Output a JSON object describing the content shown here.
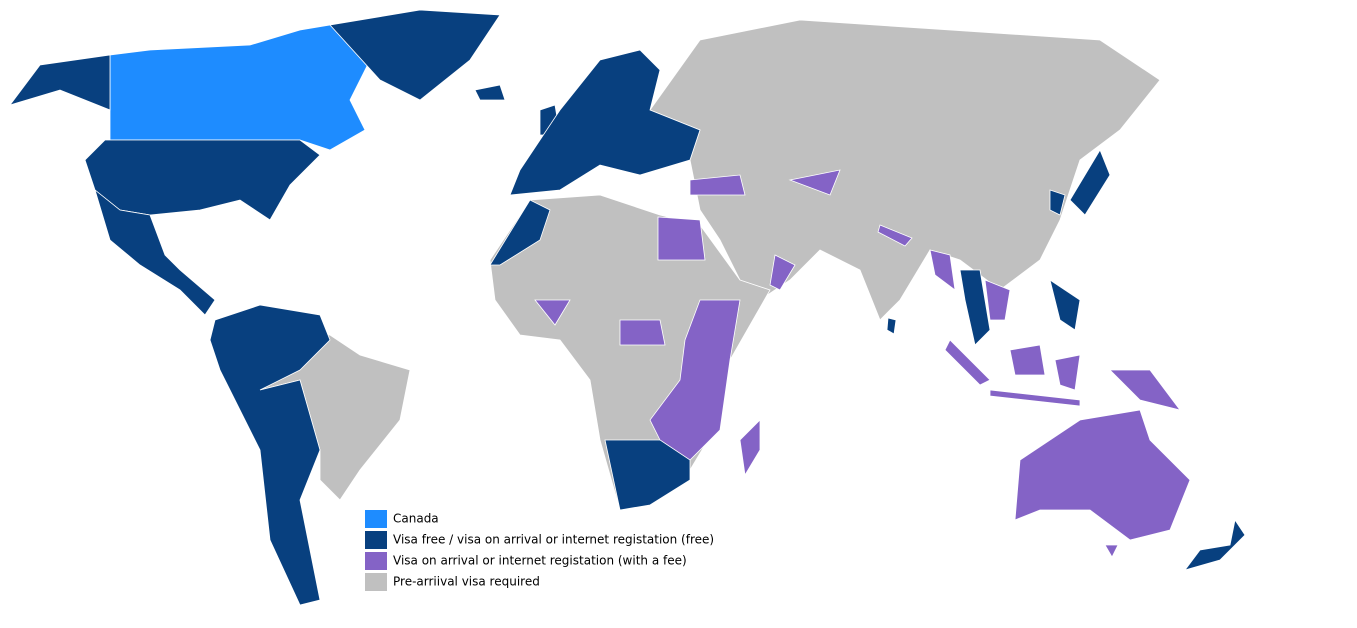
{
  "legend": [
    {
      "label": "Canada",
      "color": "#1e8cff"
    },
    {
      "label": "Visa free / visa on arrival or internet registation (free)",
      "color": "#08407f"
    },
    {
      "label": "Visa on arrival or internet registation (with a fee)",
      "color": "#8463c6"
    },
    {
      "label": "Pre-arriival visa required",
      "color": "#c0c0c0"
    }
  ]
}
